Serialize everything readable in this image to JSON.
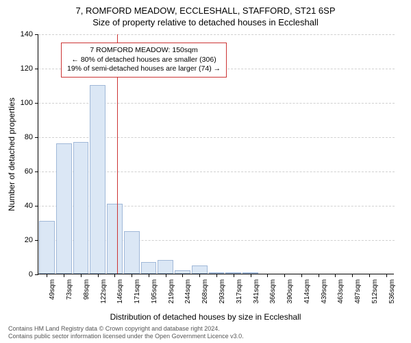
{
  "header": {
    "title1": "7, ROMFORD MEADOW, ECCLESHALL, STAFFORD, ST21 6SP",
    "title2": "Size of property relative to detached houses in Eccleshall"
  },
  "chart": {
    "type": "histogram",
    "ylabel": "Number of detached properties",
    "xlabel": "Distribution of detached houses by size in Eccleshall",
    "ylim_max": 140,
    "ytick_step": 20,
    "yticks": [
      0,
      20,
      40,
      60,
      80,
      100,
      120,
      140
    ],
    "x_categories": [
      "49sqm",
      "73sqm",
      "98sqm",
      "122sqm",
      "146sqm",
      "171sqm",
      "195sqm",
      "219sqm",
      "244sqm",
      "268sqm",
      "293sqm",
      "317sqm",
      "341sqm",
      "366sqm",
      "390sqm",
      "414sqm",
      "439sqm",
      "463sqm",
      "487sqm",
      "512sqm",
      "536sqm"
    ],
    "values": [
      31,
      76,
      77,
      110,
      41,
      25,
      7,
      8,
      2,
      5,
      1,
      1,
      1,
      0,
      0,
      0,
      0,
      0,
      0,
      0,
      0
    ],
    "bar_fill": "#dbe7f5",
    "bar_stroke": "#a0b8d8",
    "grid_color": "#d0d0d0",
    "background": "#ffffff",
    "reference_line": {
      "color": "#cc3333",
      "position_sqm": 150
    }
  },
  "note": {
    "line1": "7 ROMFORD MEADOW: 150sqm",
    "line2": "← 80% of detached houses are smaller (306)",
    "line3": "19% of semi-detached houses are larger (74) →"
  },
  "footer": {
    "line1": "Contains HM Land Registry data © Crown copyright and database right 2024.",
    "line2": "Contains public sector information licensed under the Open Government Licence v3.0."
  }
}
